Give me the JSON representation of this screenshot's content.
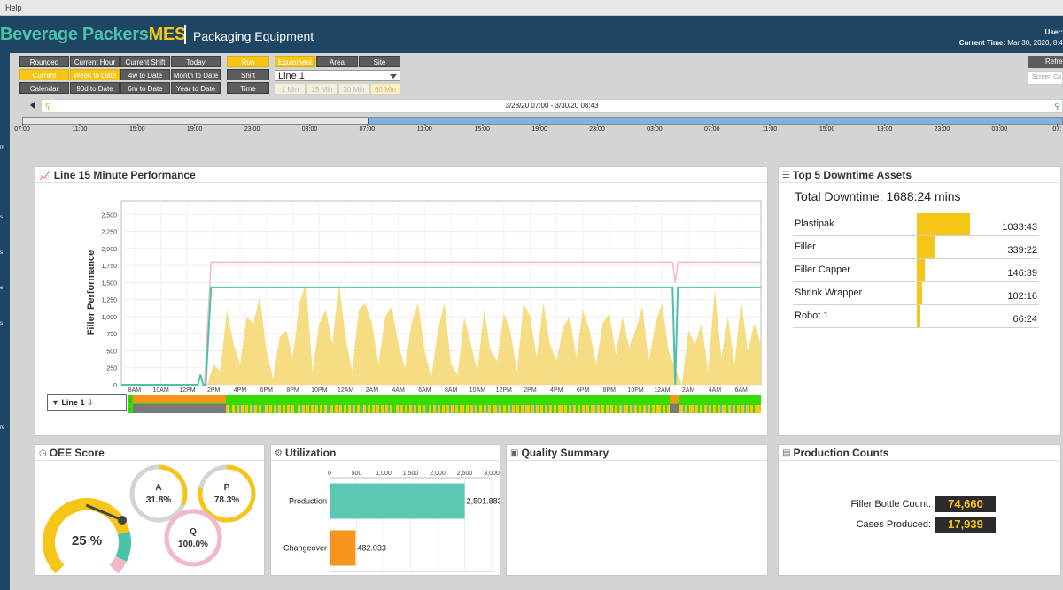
{
  "menu": {
    "help": "Help"
  },
  "header": {
    "brand_main": "Beverage Packers",
    "brand_suffix": "MES",
    "subtitle": "Packaging Equipment",
    "user_label": "User:",
    "time_label": "Current Time:",
    "time_value": "Mar 30, 2020, 8:4"
  },
  "sidebar_letters": [
    "nt",
    "s",
    "s",
    "e",
    "s",
    "re"
  ],
  "toolbar": {
    "time_buttons": [
      "Rounded",
      "Current Hour",
      "Current Shift",
      "Today",
      "Current",
      "Week to Date",
      "4w to Date",
      "Month to Date",
      "Calendar",
      "90d to Date",
      "6m to Date",
      "Year to Date"
    ],
    "mode_buttons": [
      "Run",
      "Shift",
      "Time"
    ],
    "scope_buttons": [
      "Equipment",
      "Area",
      "Site"
    ],
    "line_select": "Line 1",
    "interval_buttons": [
      "1 Min",
      "15 Min",
      "30 Min",
      "60 Min"
    ],
    "refresh": "Refre",
    "screen_capture": "Screen Ca"
  },
  "range": {
    "text": "3/28/20 07:00 - 3/30/20 08:43"
  },
  "timeline_labels": [
    "07:00",
    "11:00",
    "15:00",
    "19:00",
    "23:00",
    "03:00",
    "07:00",
    "11:00",
    "15:00",
    "19:00",
    "23:00",
    "03:00",
    "07:00",
    "11:00",
    "15:00",
    "19:00",
    "23:00",
    "03:00",
    "07:"
  ],
  "perf_panel": {
    "title": "Line 15 Minute Performance",
    "legend_line": "Line 1"
  },
  "downtime": {
    "title": "Top 5 Downtime Assets",
    "total": "Total Downtime: 1688:24 mins",
    "rows": [
      {
        "name": "Plastipak",
        "value": "1033:43",
        "frac": 1.0
      },
      {
        "name": "Filler",
        "value": "339:22",
        "frac": 0.33
      },
      {
        "name": "Filler Capper",
        "value": "146:39",
        "frac": 0.142
      },
      {
        "name": "Shrink Wrapper",
        "value": "102:16",
        "frac": 0.099
      },
      {
        "name": "Robot 1",
        "value": "66:24",
        "frac": 0.064
      }
    ]
  },
  "oee": {
    "title": "OEE Score",
    "score": "25 %",
    "score_value": 25,
    "availability_label": "A",
    "availability": "31.8%",
    "availability_value": 31.8,
    "performance_label": "P",
    "performance": "78.3%",
    "performance_value": 78.3,
    "quality_label": "Q",
    "quality": "100.0%",
    "quality_value": 100.0
  },
  "utilization": {
    "title": "Utilization"
  },
  "quality": {
    "title": "Quality Summary"
  },
  "counts": {
    "title": "Production Counts",
    "bottle_label": "Filler Bottle Count:",
    "bottle_value": "74,660",
    "cases_label": "Cases Produced:",
    "cases_value": "17,939"
  },
  "colors": {
    "teal": "#4cc3a8",
    "yellow": "#f5c518",
    "navy": "#1e4563",
    "orange": "#f7941d",
    "green": "#33dd00",
    "pink": "#f2b8c6"
  },
  "chart_data": [
    {
      "type": "line",
      "title": "",
      "ylabel": "Filler Performance",
      "xlabel": "",
      "ylim": [
        0,
        2700
      ],
      "yticks": [
        "2,500",
        "2,250",
        "2,000",
        "1,750",
        "1,500",
        "1,250",
        "1,000",
        "750",
        "500",
        "250",
        "0"
      ],
      "xticks": [
        "8AM",
        "10AM",
        "12PM",
        "2PM",
        "4PM",
        "6PM",
        "8PM",
        "10PM",
        "12AM",
        "2AM",
        "4AM",
        "6AM",
        "8AM",
        "10AM",
        "12PM",
        "2PM",
        "4PM",
        "6PM",
        "8PM",
        "10PM",
        "12AM",
        "2AM",
        "4AM",
        "6AM"
      ],
      "series": [
        {
          "name": "",
          "kind": "line",
          "color": "#f2b8c6",
          "x": [
            0,
            6.3,
            6.8,
            41.8,
            42.0,
            42.2,
            48.5
          ],
          "y": [
            null,
            0,
            1800,
            1800,
            1500,
            1800,
            1800
          ]
        },
        {
          "name": "",
          "kind": "line",
          "color": "#4cc3a8",
          "x": [
            0,
            5.8,
            6.0,
            6.2,
            6.4,
            6.8,
            41.8,
            42.0,
            42.2,
            48.5
          ],
          "y": [
            0,
            0,
            150,
            0,
            0,
            1430,
            1430,
            0,
            1430,
            1430
          ]
        },
        {
          "name": "",
          "kind": "area",
          "color": "#f5d76e",
          "x": [
            6.5,
            7,
            7.5,
            8,
            8.5,
            9,
            9.5,
            10,
            10.5,
            11,
            11.5,
            12,
            12.5,
            13,
            13.5,
            14,
            14.5,
            15,
            15.5,
            16,
            16.5,
            17,
            17.5,
            18,
            18.5,
            19,
            19.5,
            20,
            20.5,
            21,
            21.5,
            22,
            22.5,
            23,
            23.5,
            24,
            24.5,
            25,
            25.5,
            26,
            26.5,
            27,
            27.5,
            28,
            28.5,
            29,
            29.5,
            30,
            30.5,
            31,
            31.5,
            32,
            32.5,
            33,
            33.5,
            34,
            34.5,
            35,
            35.5,
            36,
            36.5,
            37,
            37.5,
            38,
            38.5,
            39,
            39.5,
            40,
            40.5,
            41,
            41.5,
            42.5,
            43,
            43.5,
            44,
            44.5,
            45,
            45.5,
            46,
            46.5,
            47,
            47.5,
            48,
            48.5
          ],
          "y": [
            0,
            300,
            200,
            1100,
            600,
            300,
            1000,
            900,
            1300,
            500,
            100,
            700,
            800,
            400,
            1200,
            1500,
            200,
            900,
            1100,
            600,
            1500,
            700,
            200,
            1100,
            1200,
            900,
            300,
            1000,
            1150,
            600,
            250,
            900,
            1200,
            500,
            100,
            800,
            1200,
            300,
            150,
            1000,
            600,
            200,
            1100,
            500,
            350,
            1050,
            800,
            200,
            1200,
            1000,
            400,
            1200,
            600,
            350,
            850,
            1000,
            400,
            1100,
            800,
            300,
            900,
            1050,
            450,
            1000,
            550,
            800,
            1150,
            350,
            900,
            1200,
            500,
            0,
            800,
            600,
            900,
            200,
            1400,
            400,
            1000,
            300,
            1250,
            500,
            900,
            600
          ]
        }
      ]
    },
    {
      "type": "bar",
      "orientation": "horizontal",
      "title": "",
      "categories": [
        "Production",
        "Changeover"
      ],
      "values": [
        2501.883,
        482.033
      ],
      "labels": [
        "2,501.883",
        "482.033"
      ],
      "colors": [
        "#5cc8b3",
        "#f7941d"
      ],
      "xticks": [
        "0",
        "500",
        "1,000",
        "1,500",
        "2,000",
        "2,500",
        "3,000"
      ],
      "xlim": [
        0,
        3000
      ]
    }
  ]
}
